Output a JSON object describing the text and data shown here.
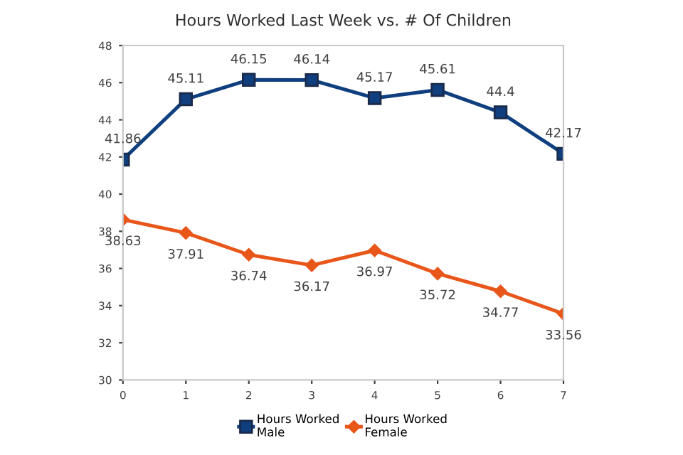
{
  "chart_data": {
    "type": "line",
    "title": "Hours Worked Last Week vs. # Of Children",
    "x": [
      0,
      1,
      2,
      3,
      4,
      5,
      6,
      7
    ],
    "series": [
      {
        "name": "Hours Worked Male",
        "color": "#0f3f7f",
        "marker": "square",
        "values": [
          41.86,
          45.11,
          46.15,
          46.14,
          45.17,
          45.61,
          44.4,
          42.17
        ]
      },
      {
        "name": "Hours Worked Female",
        "color": "#e8561a",
        "marker": "diamond",
        "values": [
          38.63,
          37.91,
          36.74,
          36.17,
          36.97,
          35.72,
          34.77,
          33.56
        ]
      }
    ],
    "xlim": [
      0,
      7
    ],
    "xticks": [
      0,
      1,
      2,
      3,
      4,
      5,
      6,
      7
    ],
    "ylim": [
      30,
      48
    ],
    "yticks": [
      30,
      32,
      34,
      36,
      38,
      40,
      42,
      44,
      46,
      48
    ],
    "grid": false,
    "legend": "bottom",
    "data_labels": true,
    "line_style": "solid"
  }
}
